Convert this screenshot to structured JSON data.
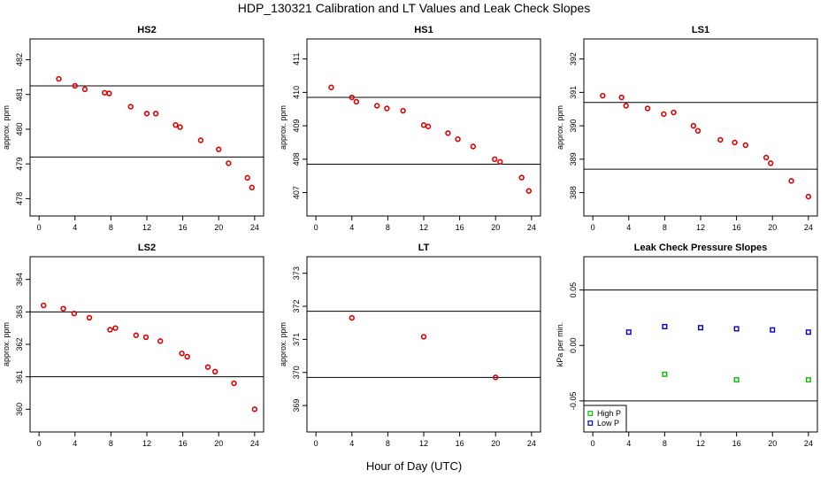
{
  "title": "HDP_130321  Calibration and LT Values and Leak Check Slopes",
  "xlabel": "Hour of Day (UTC)",
  "colors": {
    "cal": "#dd0000",
    "high_p": "#00bb00",
    "low_p": "#0000cc",
    "axis": "#000000"
  },
  "chart_data": [
    {
      "type": "scatter",
      "title": "HS2",
      "ylabel": "approx. ppm",
      "xlim": [
        -1,
        25
      ],
      "ylim": [
        477.5,
        482.6
      ],
      "xticks": [
        0,
        4,
        8,
        12,
        16,
        20,
        24
      ],
      "yticks": [
        478,
        479,
        480,
        481,
        482
      ],
      "hlines": [
        481.25,
        479.2
      ],
      "marker": "circle",
      "color": "#dd0000",
      "x": [
        2.2,
        4.0,
        5.1,
        7.3,
        7.8,
        10.2,
        12.0,
        13.0,
        15.2,
        15.7,
        18.0,
        20.0,
        21.1,
        23.2,
        23.7
      ],
      "y": [
        481.45,
        481.25,
        481.15,
        481.05,
        481.03,
        480.65,
        480.45,
        480.45,
        480.12,
        480.06,
        479.68,
        479.42,
        479.02,
        478.6,
        478.32
      ]
    },
    {
      "type": "scatter",
      "title": "HS1",
      "ylabel": "approx. ppm",
      "xlim": [
        -1,
        25
      ],
      "ylim": [
        406.3,
        411.6
      ],
      "xticks": [
        0,
        4,
        8,
        12,
        16,
        20,
        24
      ],
      "yticks": [
        407,
        408,
        409,
        410,
        411
      ],
      "hlines": [
        409.85,
        407.85
      ],
      "marker": "circle",
      "color": "#dd0000",
      "x": [
        1.7,
        4.0,
        4.5,
        6.8,
        7.9,
        9.7,
        12.0,
        12.5,
        14.7,
        15.8,
        17.5,
        19.9,
        20.5,
        22.9,
        23.7
      ],
      "y": [
        410.15,
        409.85,
        409.72,
        409.6,
        409.52,
        409.45,
        409.02,
        408.98,
        408.78,
        408.6,
        408.38,
        408.0,
        407.92,
        407.45,
        407.05
      ]
    },
    {
      "type": "scatter",
      "title": "LS1",
      "ylabel": "approx. ppm",
      "xlim": [
        -1,
        25
      ],
      "ylim": [
        387.3,
        392.6
      ],
      "xticks": [
        0,
        4,
        8,
        12,
        16,
        20,
        24
      ],
      "yticks": [
        388,
        389,
        390,
        391,
        392
      ],
      "hlines": [
        390.7,
        388.7
      ],
      "marker": "circle",
      "color": "#dd0000",
      "x": [
        1.1,
        3.2,
        3.7,
        6.1,
        7.9,
        9.0,
        11.2,
        11.7,
        14.2,
        15.8,
        17.0,
        19.3,
        19.8,
        22.1,
        24.0
      ],
      "y": [
        390.9,
        390.85,
        390.6,
        390.52,
        390.35,
        390.4,
        390.0,
        389.85,
        389.58,
        389.5,
        389.42,
        389.05,
        388.88,
        388.35,
        387.88
      ]
    },
    {
      "type": "scatter",
      "title": "LS2",
      "ylabel": "approx. ppm",
      "xlim": [
        -1,
        25
      ],
      "ylim": [
        359.3,
        364.7
      ],
      "xticks": [
        0,
        4,
        8,
        12,
        16,
        20,
        24
      ],
      "yticks": [
        360,
        361,
        362,
        363,
        364
      ],
      "hlines": [
        363.0,
        361.0
      ],
      "marker": "circle",
      "color": "#dd0000",
      "x": [
        0.5,
        2.7,
        3.9,
        5.6,
        7.9,
        8.5,
        10.8,
        11.9,
        13.5,
        15.9,
        16.5,
        18.8,
        19.6,
        21.7,
        24.0
      ],
      "y": [
        363.2,
        363.1,
        362.95,
        362.82,
        362.45,
        362.5,
        362.28,
        362.22,
        362.1,
        361.72,
        361.62,
        361.3,
        361.16,
        360.8,
        360.0
      ]
    },
    {
      "type": "scatter",
      "title": "LT",
      "ylabel": "approx. ppm",
      "xlim": [
        -1,
        25
      ],
      "ylim": [
        368.2,
        373.5
      ],
      "xticks": [
        0,
        4,
        8,
        12,
        16,
        20,
        24
      ],
      "yticks": [
        369,
        370,
        371,
        372,
        373
      ],
      "hlines": [
        371.85,
        369.85
      ],
      "marker": "circle",
      "color": "#dd0000",
      "x": [
        4.0,
        12.0,
        20.0
      ],
      "y": [
        371.65,
        371.08,
        369.85
      ]
    },
    {
      "type": "scatter",
      "title": "Leak Check Pressure Slopes",
      "ylabel": "kPa per min.",
      "xlim": [
        -1,
        25
      ],
      "ylim": [
        -0.078,
        0.08
      ],
      "xticks": [
        0,
        4,
        8,
        12,
        16,
        20,
        24
      ],
      "ytick_values": [
        -0.05,
        0.0,
        0.05
      ],
      "ytick_labels": [
        "-0.05",
        "0.00",
        "0.05"
      ],
      "hlines": [
        0.05,
        -0.05
      ],
      "marker": "square",
      "legend": {
        "placement": "bottom-left"
      },
      "series": [
        {
          "name": "High P",
          "color": "#00bb00",
          "x": [
            8.0,
            16.0,
            24.0
          ],
          "y": [
            -0.026,
            -0.031,
            -0.031
          ]
        },
        {
          "name": "Low P",
          "color": "#0000cc",
          "x": [
            4.0,
            8.0,
            12.0,
            16.0,
            20.0,
            24.0
          ],
          "y": [
            0.012,
            0.017,
            0.016,
            0.015,
            0.014,
            0.012
          ]
        }
      ]
    }
  ]
}
